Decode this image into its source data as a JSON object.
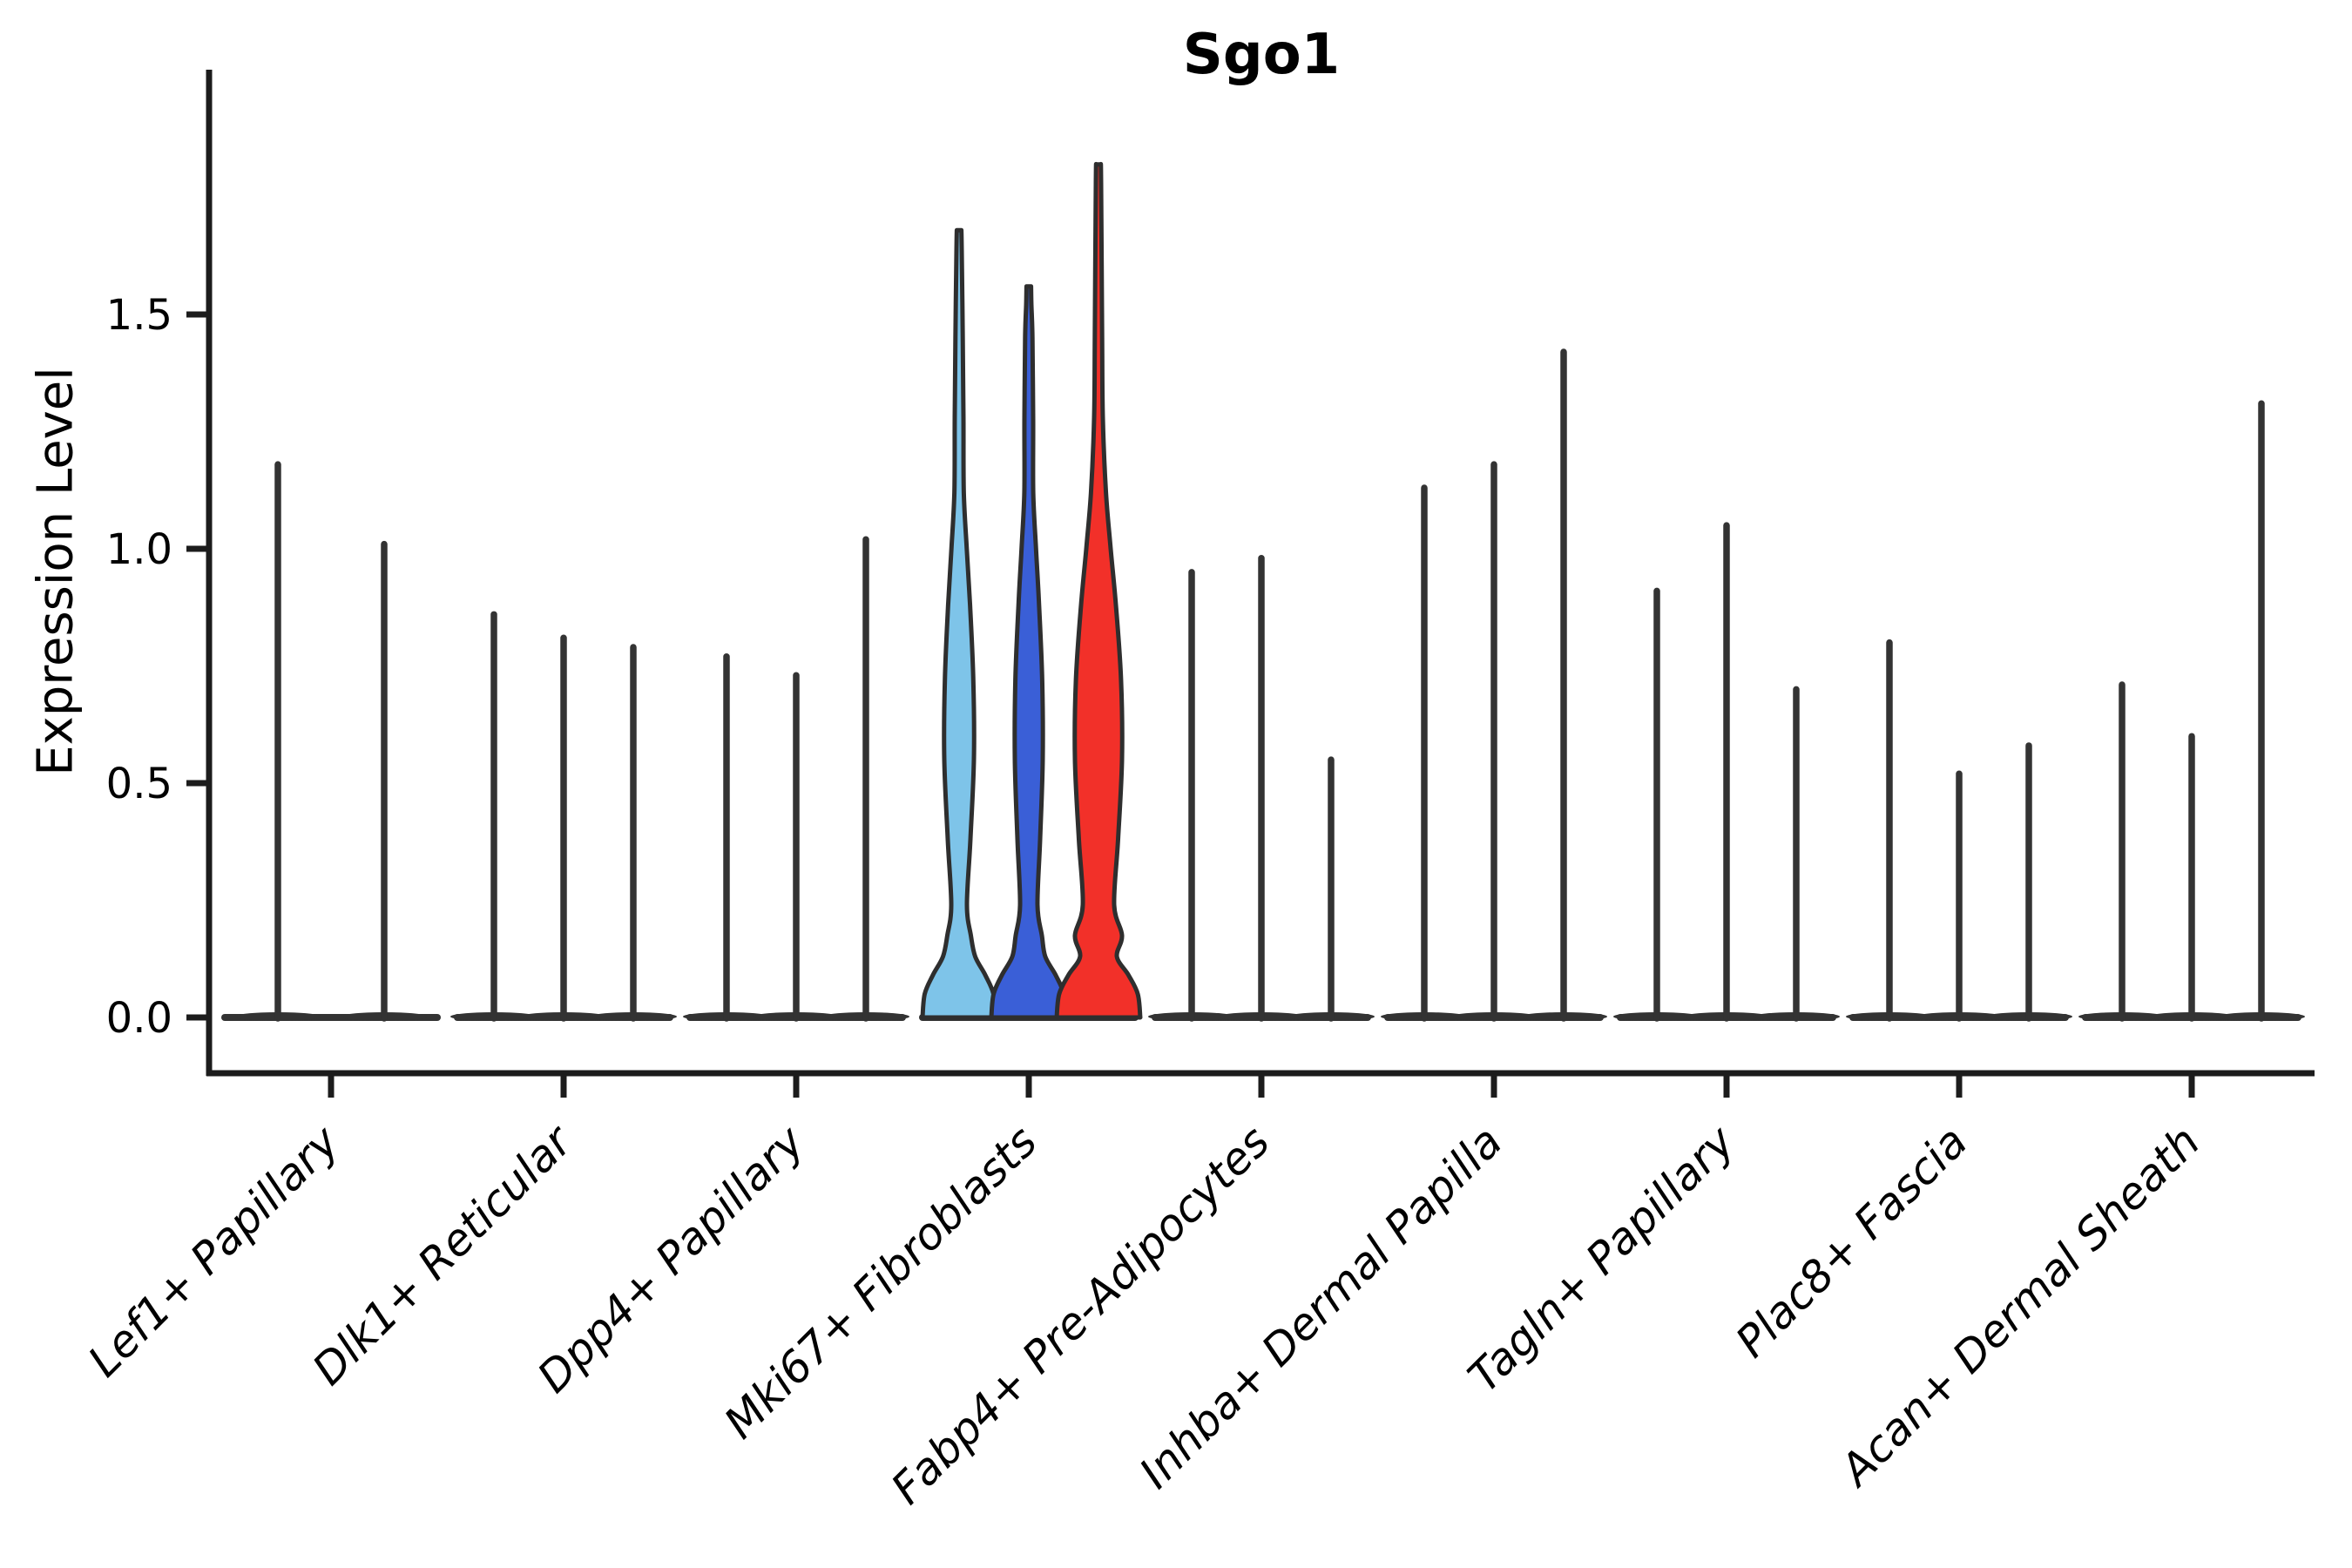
{
  "title": "Sgo1",
  "ylabel": "Expression Level",
  "colors": {
    "axis": "#1c1c1c",
    "violin_line": "#333333",
    "violin_outline": "#2e2e2e",
    "highlight_lightblue": "#7EC4E9",
    "highlight_blue": "#3A5FD7",
    "highlight_red": "#F23029",
    "text": "#000000"
  },
  "chart_data": {
    "type": "violin",
    "title": "Sgo1",
    "xlabel": "",
    "ylabel": "Expression Level",
    "ylim": [
      -0.06,
      2.05
    ],
    "grid": false,
    "legend": "none",
    "yticks": [
      {
        "label": "0.0",
        "value": 0.0
      },
      {
        "label": "0.5",
        "value": 0.5
      },
      {
        "label": "1.0",
        "value": 1.0
      },
      {
        "label": "1.5",
        "value": 1.5
      }
    ],
    "categories": [
      "Lef1+ Papillary",
      "Dlk1+ Reticular",
      "Dpp4+ Papillary",
      "Mki67+ Fibroblasts",
      "Fabp4+ Pre-Adipocytes",
      "Inhba+ Dermal Papilla",
      "Tagln+ Papillary",
      "Plac8+ Fascia",
      "Acan+ Dermal Sheath"
    ],
    "note": "Each category shows up to 3 split violins; values are violin peak (max) expression read from axis. Only Mki67+ Fibroblasts violins are filled/colored; all others collapse to thin spikes at ~0 density.",
    "violins": [
      {
        "category": "Lef1+ Papillary",
        "items": [
          {
            "dx": -61,
            "max": 1.18,
            "kind": "spike"
          },
          {
            "dx": 61,
            "max": 1.01,
            "kind": "spike"
          }
        ]
      },
      {
        "category": "Dlk1+ Reticular",
        "items": [
          {
            "dx": -80,
            "max": 0.86,
            "kind": "spike"
          },
          {
            "dx": 0,
            "max": 0.81,
            "kind": "spike"
          },
          {
            "dx": 80,
            "max": 0.79,
            "kind": "spike"
          }
        ]
      },
      {
        "category": "Dpp4+ Papillary",
        "items": [
          {
            "dx": -80,
            "max": 0.77,
            "kind": "spike"
          },
          {
            "dx": 0,
            "max": 0.73,
            "kind": "spike"
          },
          {
            "dx": 80,
            "max": 1.02,
            "kind": "spike"
          }
        ]
      },
      {
        "category": "Mki67+ Fibroblasts",
        "items": [
          {
            "dx": -80,
            "max": 1.68,
            "kind": "violin",
            "fill": "#7EC4E9",
            "base": 42,
            "waist": 9,
            "mid": 17
          },
          {
            "dx": 0,
            "max": 1.56,
            "kind": "violin",
            "fill": "#3A5FD7",
            "base": 43,
            "waist": 10,
            "mid": 16
          },
          {
            "dx": 80,
            "max": 1.82,
            "kind": "violin",
            "fill": "#F23029",
            "base": 48,
            "waist": 18,
            "mid": 27
          }
        ]
      },
      {
        "category": "Fabp4+ Pre-Adipocytes",
        "items": [
          {
            "dx": -80,
            "max": 0.95,
            "kind": "spike"
          },
          {
            "dx": 0,
            "max": 0.98,
            "kind": "spike"
          },
          {
            "dx": 80,
            "max": 0.55,
            "kind": "spike"
          }
        ]
      },
      {
        "category": "Inhba+ Dermal Papilla",
        "items": [
          {
            "dx": -80,
            "max": 1.13,
            "kind": "spike"
          },
          {
            "dx": 0,
            "max": 1.18,
            "kind": "spike"
          },
          {
            "dx": 80,
            "max": 1.42,
            "kind": "spike"
          }
        ]
      },
      {
        "category": "Tagln+ Papillary",
        "items": [
          {
            "dx": -80,
            "max": 0.91,
            "kind": "spike"
          },
          {
            "dx": 0,
            "max": 1.05,
            "kind": "spike"
          },
          {
            "dx": 80,
            "max": 0.7,
            "kind": "spike"
          }
        ]
      },
      {
        "category": "Plac8+ Fascia",
        "items": [
          {
            "dx": -80,
            "max": 0.8,
            "kind": "spike"
          },
          {
            "dx": 0,
            "max": 0.52,
            "kind": "spike"
          },
          {
            "dx": 80,
            "max": 0.58,
            "kind": "spike"
          }
        ]
      },
      {
        "category": "Acan+ Dermal Sheath",
        "items": [
          {
            "dx": -80,
            "max": 0.71,
            "kind": "spike"
          },
          {
            "dx": 0,
            "max": 0.6,
            "kind": "spike"
          },
          {
            "dx": 80,
            "max": 1.31,
            "kind": "spike"
          }
        ]
      }
    ]
  }
}
